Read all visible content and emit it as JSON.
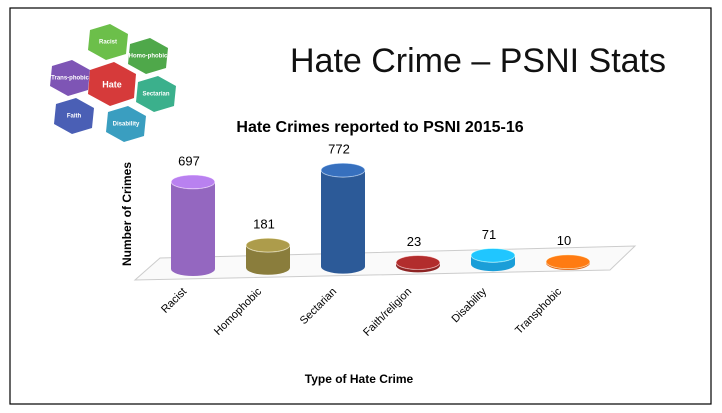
{
  "slide_title": "Hate Crime – PSNI Stats",
  "logo": [
    "Racist",
    "Homo-phobic",
    "Trans-phobic",
    "Hate",
    "Sectarian",
    "Faith",
    "Disability"
  ],
  "chart_data": {
    "type": "bar",
    "title": "Hate Crimes reported to PSNI 2015-16",
    "x_label": "Type of Hate Crime",
    "y_label": "Number of Crimes",
    "categories": [
      "Racist",
      "Homophobic",
      "Sectarian",
      "Faith/religion",
      "Disability",
      "Transphobic"
    ],
    "values": [
      697,
      181,
      772,
      23,
      71,
      10
    ],
    "colors": [
      "#9467c0",
      "#8a7d3c",
      "#2c5a98",
      "#8e2424",
      "#1a9ed8",
      "#e0620e"
    ],
    "ylim": [
      0,
      800
    ]
  }
}
